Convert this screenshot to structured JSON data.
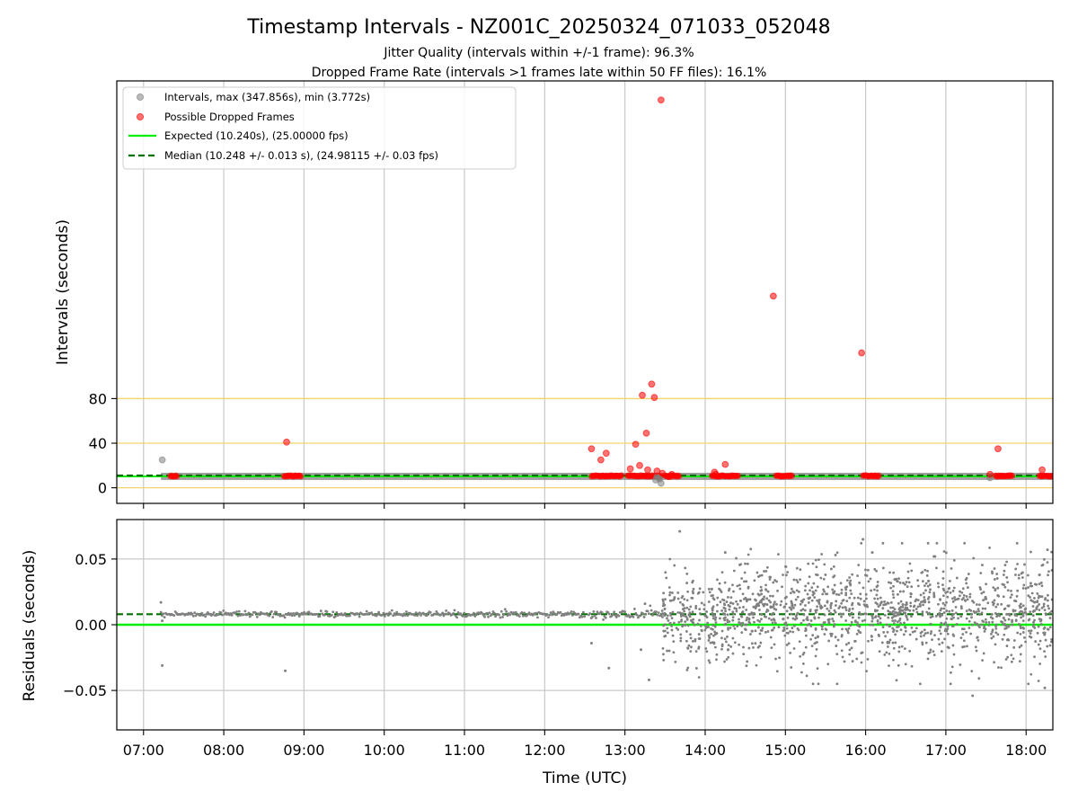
{
  "figure": {
    "title": "Timestamp Intervals - NZ001C_20250324_071033_052048",
    "subtitle_1": "Jitter Quality (intervals within +/-1 frame): 96.3%",
    "subtitle_2": "Dropped Frame Rate (intervals >1 frames late within 50 FF files): 16.1%"
  },
  "colors": {
    "intervals": "#808080",
    "dropped": "#ff0000",
    "expected": "#00ee00",
    "median": "#007000",
    "threshold": "#f5d36a",
    "grid": "#c8c8c8"
  },
  "chart_data": [
    {
      "type": "scatter",
      "panel": "intervals",
      "ylabel": "Intervals (seconds)",
      "xlim": [
        "06:40",
        "18:20"
      ],
      "ylim": [
        -14,
        365
      ],
      "yticks": [
        0,
        40,
        80
      ],
      "ytick_labels": [
        "0",
        "40",
        "80"
      ],
      "grid": "x",
      "legend_placement": "upper-left",
      "legend": [
        {
          "name": "Intervals, max (347.856s), min (3.772s)",
          "style": "gray-dot"
        },
        {
          "name": "Possible Dropped Frames",
          "style": "red-dot"
        },
        {
          "name": "Expected (10.240s), (25.00000 fps)",
          "style": "green-line"
        },
        {
          "name": "Median (10.248 +/- 0.013 s), (24.98115 +/- 0.03 fps)",
          "style": "dark-green-dashed"
        }
      ],
      "expected_value": 10.24,
      "median_value": 10.248,
      "threshold_lines": [
        0,
        40,
        80
      ],
      "interval_band": {
        "start": "07:13",
        "end": "18:20",
        "value": 10.24
      },
      "intervals_outliers": [
        {
          "x": "07:14",
          "y": 25
        },
        {
          "x": "13:23",
          "y": 7
        },
        {
          "x": "13:25",
          "y": 9
        },
        {
          "x": "13:26",
          "y": 8
        },
        {
          "x": "13:24",
          "y": 10
        },
        {
          "x": "13:27",
          "y": 4
        },
        {
          "x": "17:33",
          "y": 9
        }
      ],
      "dropped_frames": [
        {
          "x": "08:47",
          "y": 41
        },
        {
          "x": "12:35",
          "y": 35
        },
        {
          "x": "12:42",
          "y": 25
        },
        {
          "x": "12:46",
          "y": 31
        },
        {
          "x": "13:04",
          "y": 17
        },
        {
          "x": "13:08",
          "y": 39
        },
        {
          "x": "13:11",
          "y": 20
        },
        {
          "x": "13:13",
          "y": 83
        },
        {
          "x": "13:16",
          "y": 49
        },
        {
          "x": "13:17",
          "y": 16
        },
        {
          "x": "13:20",
          "y": 93
        },
        {
          "x": "13:22",
          "y": 81
        },
        {
          "x": "13:24",
          "y": 15
        },
        {
          "x": "13:27",
          "y": 347.856
        },
        {
          "x": "13:28",
          "y": 13
        },
        {
          "x": "13:33",
          "y": 10
        },
        {
          "x": "13:35",
          "y": 12
        },
        {
          "x": "14:07",
          "y": 14
        },
        {
          "x": "14:08",
          "y": 12
        },
        {
          "x": "14:15",
          "y": 21
        },
        {
          "x": "14:51",
          "y": 172
        },
        {
          "x": "15:57",
          "y": 121
        },
        {
          "x": "17:33",
          "y": 12
        },
        {
          "x": "17:39",
          "y": 35
        },
        {
          "x": "18:12",
          "y": 16
        }
      ],
      "dropped_runs": [
        {
          "start": "07:20",
          "end": "07:25",
          "y": 10.6
        },
        {
          "start": "08:45",
          "end": "08:58",
          "y": 10.6
        },
        {
          "start": "12:35",
          "end": "12:58",
          "y": 10.6
        },
        {
          "start": "13:02",
          "end": "13:27",
          "y": 10.6
        },
        {
          "start": "13:30",
          "end": "13:41",
          "y": 10.6
        },
        {
          "start": "14:05",
          "end": "14:25",
          "y": 10.6
        },
        {
          "start": "14:53",
          "end": "15:05",
          "y": 10.6
        },
        {
          "start": "15:58",
          "end": "16:10",
          "y": 10.6
        },
        {
          "start": "17:37",
          "end": "17:50",
          "y": 10.6
        },
        {
          "start": "18:10",
          "end": "18:20",
          "y": 10.6
        }
      ]
    },
    {
      "type": "scatter",
      "panel": "residuals",
      "xlabel": "Time (UTC)",
      "ylabel": "Residuals (seconds)",
      "xlim": [
        "06:40",
        "18:20"
      ],
      "ylim": [
        -0.08,
        0.08
      ],
      "yticks": [
        -0.05,
        0,
        0.05
      ],
      "ytick_labels": [
        "−0.05",
        "0.00",
        "0.05"
      ],
      "xticks": [
        "07:00",
        "08:00",
        "09:00",
        "10:00",
        "11:00",
        "12:00",
        "13:00",
        "14:00",
        "15:00",
        "16:00",
        "17:00",
        "18:00"
      ],
      "grid": "both",
      "expected_residual": 0,
      "median_residual": 0.008,
      "sparse_segments": [
        {
          "start": "07:13",
          "end": "12:30",
          "center": 0.008,
          "spread": 0.001
        },
        {
          "start": "12:33",
          "end": "13:30",
          "center": 0.008,
          "spread": 0.002
        }
      ],
      "dense_segments": [
        {
          "start": "13:28",
          "end": "14:20",
          "center": 0.005,
          "spread": 0.015
        },
        {
          "start": "14:20",
          "end": "18:20",
          "center": 0.01,
          "spread": 0.019
        }
      ],
      "residual_outliers": [
        {
          "x": "07:13",
          "y": 0.017
        },
        {
          "x": "07:14",
          "y": 0.003
        },
        {
          "x": "07:14",
          "y": -0.031
        },
        {
          "x": "08:46",
          "y": -0.035
        },
        {
          "x": "12:35",
          "y": -0.014
        },
        {
          "x": "12:48",
          "y": -0.033
        },
        {
          "x": "13:18",
          "y": -0.042
        },
        {
          "x": "13:12",
          "y": -0.019
        },
        {
          "x": "13:15",
          "y": 0.016
        },
        {
          "x": "13:41",
          "y": 0.071
        },
        {
          "x": "14:15",
          "y": 0.055
        },
        {
          "x": "15:58",
          "y": 0.065
        },
        {
          "x": "16:05",
          "y": 0.055
        },
        {
          "x": "17:20",
          "y": -0.054
        },
        {
          "x": "18:14",
          "y": -0.048
        },
        {
          "x": "18:16",
          "y": 0.057
        }
      ]
    }
  ]
}
